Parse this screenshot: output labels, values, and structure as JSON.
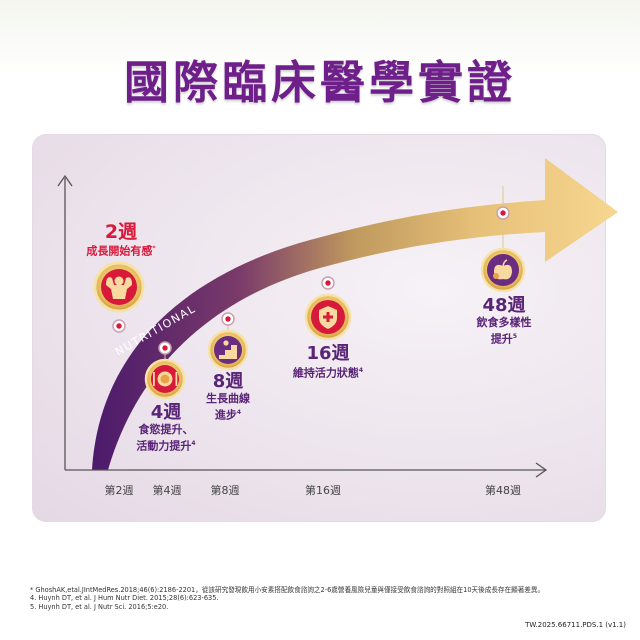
{
  "title": "國際臨床醫學實證",
  "arrow_label": "NUTRITIONAL",
  "milestones": [
    {
      "week": "2週",
      "desc": "成長開始有感",
      "ref": "*",
      "icon": "strength-icon"
    },
    {
      "week": "4週",
      "desc_line1": "食慾提升、",
      "desc_line2": "活動力提升",
      "ref": "4",
      "icon": "meal-plate-icon"
    },
    {
      "week": "8週",
      "desc_line1": "生長曲線",
      "desc_line2": "進步",
      "ref": "4",
      "icon": "growth-stairs-icon"
    },
    {
      "week": "16週",
      "desc": "維持活力狀態",
      "ref": "4",
      "icon": "shield-plus-icon"
    },
    {
      "week": "48週",
      "desc_line1": "飲食多樣性",
      "desc_line2": "提升",
      "ref": "5",
      "icon": "apple-icon"
    }
  ],
  "x_ticks": [
    "第2週",
    "第4週",
    "第8週",
    "第16週",
    "第48週"
  ],
  "footnotes": [
    "* GhoshAK,etal.JIntMedRes.2018;46(6):2186-2201，從該研究發現飲用小安素搭配飲食諮詢之2-6歲營養風險兒童與僅接受飲食諮詢的對照組在10天後成長存在顯著差異。",
    "4. Huynh DT, et al. J Hum Nutr Diet. 2015;28(6):623-635.",
    "5. Huynh DT, et al. J Nutr Sci. 2016;5:e20."
  ],
  "doc_code": "TW.2025.66711.PDS.1 (v1.1)",
  "colors": {
    "title": "#6e1f8a",
    "accent_red": "#d7193a",
    "purple": "#5a2577",
    "gold": "#e7b85c"
  }
}
